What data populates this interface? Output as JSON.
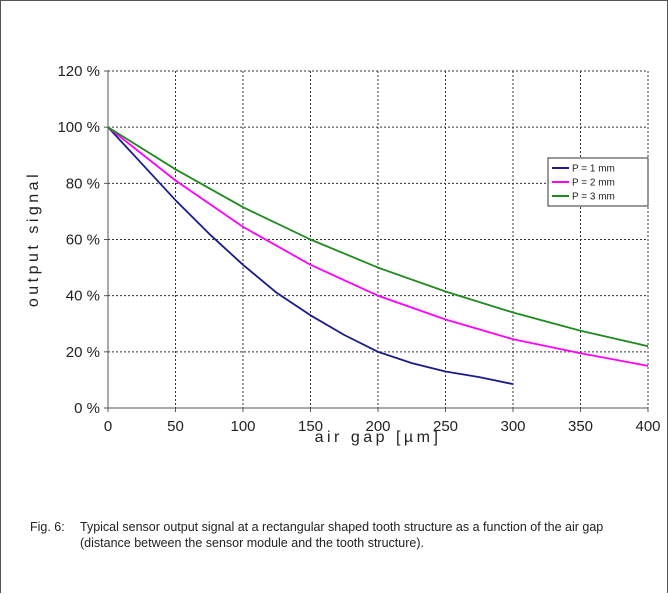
{
  "chart_data": {
    "type": "line",
    "xlabel": "air gap [µm]",
    "ylabel": "output signal",
    "xlim": [
      0,
      400
    ],
    "ylim": [
      0,
      120
    ],
    "x_ticks": [
      0,
      50,
      100,
      150,
      200,
      250,
      300,
      350,
      400
    ],
    "y_ticks": [
      0,
      20,
      40,
      60,
      80,
      100,
      120
    ],
    "y_tick_labels": [
      "0 %",
      "20 %",
      "40 %",
      "60 %",
      "80 %",
      "100 %",
      "120 %"
    ],
    "grid": true,
    "legend_position": "right",
    "series": [
      {
        "name": "P = 1 mm",
        "color": "#1a1a8c",
        "x": [
          0,
          25,
          50,
          75,
          100,
          125,
          150,
          175,
          200,
          225,
          250,
          275,
          300
        ],
        "y": [
          100,
          87,
          74,
          62,
          51,
          41,
          33,
          26,
          20,
          16,
          13,
          11,
          8.5
        ]
      },
      {
        "name": "P = 2 mm",
        "color": "#ff00ff",
        "x": [
          0,
          50,
          100,
          150,
          200,
          250,
          300,
          350,
          400
        ],
        "y": [
          100,
          81,
          64.5,
          51,
          40,
          31.5,
          24.5,
          19.5,
          15
        ]
      },
      {
        "name": "P = 3 mm",
        "color": "#1f8a1f",
        "x": [
          0,
          50,
          100,
          150,
          200,
          250,
          300,
          350,
          400
        ],
        "y": [
          100,
          85,
          71.5,
          60,
          50,
          41.5,
          34,
          27.5,
          22
        ]
      }
    ]
  },
  "caption": {
    "label": "Fig. 6:",
    "text": "Typical sensor output signal at a rectangular shaped tooth structure as a function of the air gap (distance between the sensor module and the tooth structure)."
  }
}
